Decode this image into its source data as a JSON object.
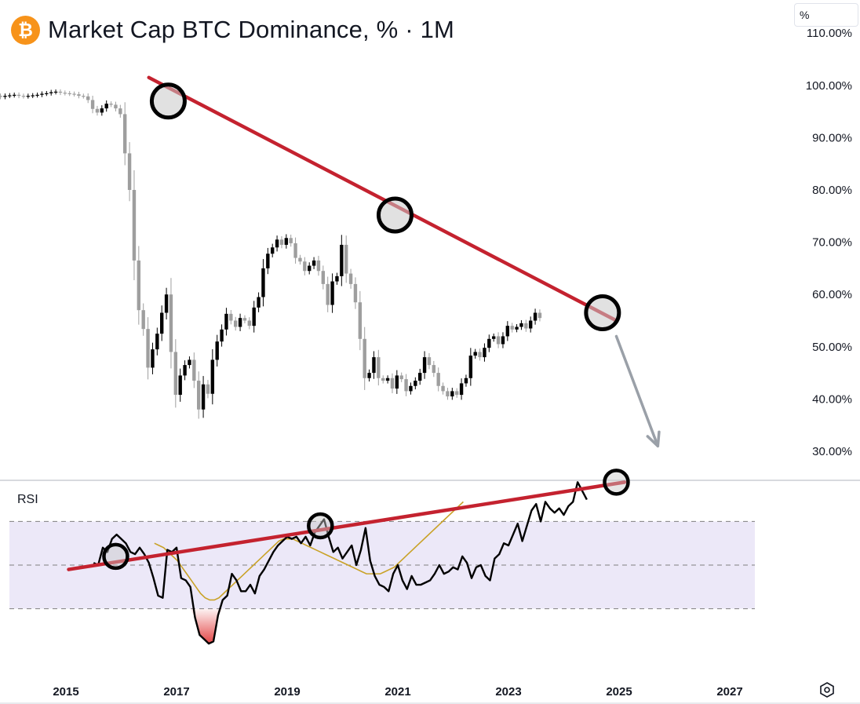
{
  "header": {
    "logo_symbol": "₿",
    "title": "Market Cap BTC Dominance, % · 1M",
    "unit_selector": "%"
  },
  "colors": {
    "bull_candle": "#000000",
    "bear_candle": "#9e9e9e",
    "trendline": "#c4222f",
    "rsi_line": "#000000",
    "rsi_ma_line": "#c9a227",
    "rsi_band_fill": "#ece8f8",
    "oversold_fill": "#e03030",
    "arrow": "#9aa0a8"
  },
  "icons": {
    "logo": "bitcoin-icon",
    "settings": "settings-hexagon-icon"
  },
  "chart_data": [
    {
      "type": "candlestick",
      "title": "Market Cap BTC Dominance, % · 1M",
      "ylabel": "%",
      "ylim": [
        26,
        112
      ],
      "xlim": [
        2014.8,
        2028.4
      ],
      "y_ticks": [
        "110.00%",
        "100.00%",
        "90.00%",
        "80.00%",
        "70.00%",
        "60.00%",
        "50.00%",
        "40.00%",
        "30.00%"
      ],
      "y_tick_values": [
        110,
        100,
        90,
        80,
        70,
        60,
        50,
        40,
        30
      ],
      "x_ticks": [
        "2015",
        "2017",
        "2019",
        "2021",
        "2023",
        "2025",
        "2027"
      ],
      "x_tick_values": [
        2015,
        2017,
        2019,
        2021,
        2023,
        2025,
        2027
      ],
      "close_series": {
        "start": 2013.4,
        "step_months": 1,
        "values": [
          99.0,
          98.8,
          98.5,
          98.3,
          98.0,
          97.8,
          98.0,
          98.1,
          98.2,
          98.0,
          97.9,
          98.0,
          98.1,
          98.2,
          98.4,
          98.5,
          98.7,
          98.8,
          98.6,
          98.5,
          98.4,
          98.3,
          98.0,
          97.9,
          97.2,
          95.5,
          94.8,
          95.6,
          96.5,
          96.3,
          95.6,
          94.5,
          87.0,
          80.0,
          66.5,
          57.0,
          53.4,
          46.0,
          49.5,
          52.5,
          56.5,
          60.0,
          49.0,
          40.8,
          44.5,
          46.5,
          47.5,
          43.5,
          38.0,
          42.8,
          41.0,
          47.5,
          51.0,
          53.3,
          56.3,
          55.0,
          53.8,
          55.5,
          55.0,
          54.0,
          57.5,
          59.5,
          65.0,
          67.8,
          69.0,
          70.5,
          69.5,
          70.8,
          69.8,
          67.0,
          66.3,
          64.5,
          65.5,
          66.5,
          64.5,
          62.0,
          58.0,
          62.5,
          63.5,
          69.5,
          64.0,
          62.0,
          58.5,
          51.5,
          44.0,
          45.0,
          48.0,
          44.0,
          43.5,
          44.0,
          42.0,
          44.5,
          43.8,
          41.5,
          42.5,
          43.5,
          45.0,
          48.0,
          46.5,
          45.0,
          42.5,
          41.5,
          40.5,
          41.5,
          40.8,
          43.0,
          44.0,
          48.3,
          49.0,
          48.0,
          49.8,
          51.5,
          52.0,
          50.5,
          52.0,
          54.0,
          53.3,
          53.8,
          54.5,
          53.5,
          55.0,
          56.5,
          55.5
        ]
      },
      "trendline_points": [
        [
          2016.5,
          101.5
        ],
        [
          2024.95,
          55.0
        ]
      ],
      "touch_markers": [
        [
          2016.85,
          97.0
        ],
        [
          2020.95,
          75.2
        ],
        [
          2024.7,
          56.5
        ]
      ],
      "forecast_arrow": {
        "from": [
          2024.95,
          52.0
        ],
        "to": [
          2025.7,
          31.0
        ]
      }
    },
    {
      "type": "line",
      "title": "RSI",
      "ylim": [
        10,
        92
      ],
      "band_levels": [
        30,
        50,
        70
      ],
      "rsi": {
        "start": 2015.5,
        "step_months": 1,
        "values": [
          51,
          50,
          58,
          56,
          62,
          64,
          62,
          60,
          56,
          55,
          58,
          55,
          51,
          44,
          36,
          35,
          57,
          56,
          58,
          44,
          43,
          40,
          26,
          18,
          16,
          14,
          15,
          27,
          34,
          36,
          46,
          43,
          38,
          38,
          41,
          37,
          45,
          48,
          52,
          56,
          59,
          61,
          63,
          62,
          63,
          60,
          63,
          59,
          65,
          68,
          71,
          63,
          56,
          58,
          53,
          56,
          59,
          50,
          57,
          67,
          52,
          45,
          41,
          40,
          38,
          46,
          50,
          43,
          39,
          45,
          41,
          41,
          42,
          43,
          46,
          50,
          46,
          47,
          49,
          48,
          54,
          51,
          44,
          49,
          50,
          45,
          43,
          53,
          55,
          60,
          59,
          64,
          69,
          61,
          68,
          75,
          78,
          70,
          79,
          76,
          74,
          76,
          73,
          77,
          79,
          88,
          84,
          80
        ]
      },
      "rsi_ma": {
        "start": 2016.6,
        "step_months": 1,
        "values": [
          60,
          59,
          58,
          56,
          54,
          52,
          49,
          46,
          43,
          40,
          37,
          35,
          34,
          34,
          35,
          37,
          39,
          41,
          43,
          45,
          47,
          49,
          51,
          53,
          55,
          57,
          59,
          61,
          62,
          62,
          62,
          61,
          60,
          59,
          58,
          57,
          56,
          55,
          54,
          53,
          52,
          51,
          50,
          49,
          48,
          47,
          46,
          46,
          46,
          46,
          47,
          48,
          49,
          51,
          53,
          55,
          57,
          59,
          61,
          63,
          65,
          67,
          69,
          71,
          73,
          75,
          77,
          79
        ]
      },
      "trendline_points": [
        [
          2015.05,
          48.0
        ],
        [
          2025.1,
          88.0
        ]
      ],
      "touch_markers": [
        [
          2015.9,
          54.0
        ],
        [
          2019.6,
          68.0
        ],
        [
          2024.95,
          88.0
        ]
      ]
    }
  ],
  "rsi_panel": {
    "label": "RSI"
  }
}
